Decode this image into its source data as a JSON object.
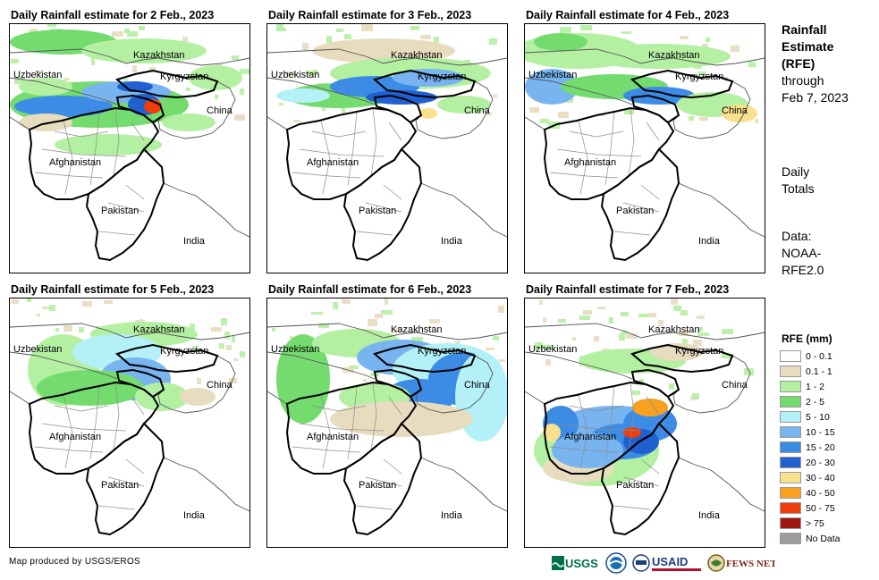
{
  "panels": [
    {
      "title": "Daily Rainfall estimate for 2 Feb., 2023",
      "date": "2 Feb."
    },
    {
      "title": "Daily Rainfall estimate for 3 Feb., 2023",
      "date": "3 Feb."
    },
    {
      "title": "Daily Rainfall estimate for 4 Feb., 2023",
      "date": "4 Feb."
    },
    {
      "title": "Daily Rainfall estimate for 5 Feb., 2023",
      "date": "5 Feb."
    },
    {
      "title": "Daily Rainfall estimate for 6 Feb., 2023",
      "date": "6 Feb."
    },
    {
      "title": "Daily Rainfall estimate for 7 Feb., 2023",
      "date": "7 Feb."
    }
  ],
  "map_labels": {
    "kazakhstan": "Kazakhstan",
    "uzbekistan": "Uzbekistan",
    "kyrgyzstan": "Kyrgyzstan",
    "china": "China",
    "afghanistan": "Afghanistan",
    "pakistan": "Pakistan",
    "india": "India"
  },
  "sidebar": {
    "title_line1": "Rainfall",
    "title_line2": "Estimate",
    "title_line3": "(RFE)",
    "through_line1": "through",
    "through_line2": "Feb 7, 2023",
    "totals_line1": "Daily",
    "totals_line2": "Totals",
    "data_line1": "Data:",
    "data_line2": "NOAA-",
    "data_line3": "RFE2.0"
  },
  "legend": {
    "title": "RFE (mm)",
    "items": [
      {
        "label": "0 - 0.1",
        "color": "#ffffff"
      },
      {
        "label": "0.1 - 1",
        "color": "#e8dcbf"
      },
      {
        "label": "1 - 2",
        "color": "#b4f0a2"
      },
      {
        "label": "2 - 5",
        "color": "#74dc6e"
      },
      {
        "label": "5 - 10",
        "color": "#b4f0f8"
      },
      {
        "label": "10 - 15",
        "color": "#78b4f0"
      },
      {
        "label": "15 - 20",
        "color": "#3c8ce6"
      },
      {
        "label": "20 - 30",
        "color": "#2060d0"
      },
      {
        "label": "30 - 40",
        "color": "#f8e08c"
      },
      {
        "label": "40 - 50",
        "color": "#f8a020"
      },
      {
        "label": "50 - 75",
        "color": "#f03c0a"
      },
      {
        "label": "> 75",
        "color": "#a01414"
      },
      {
        "label": "No Data",
        "color": "#9c9c9c"
      }
    ]
  },
  "footer": {
    "credit": "Map produced by USGS/EROS",
    "logos": [
      "USGS",
      "NOAA",
      "USAID",
      "FEWS NET"
    ]
  },
  "colors": {
    "border": "#000000",
    "province_lines": "#8c8c8c"
  }
}
